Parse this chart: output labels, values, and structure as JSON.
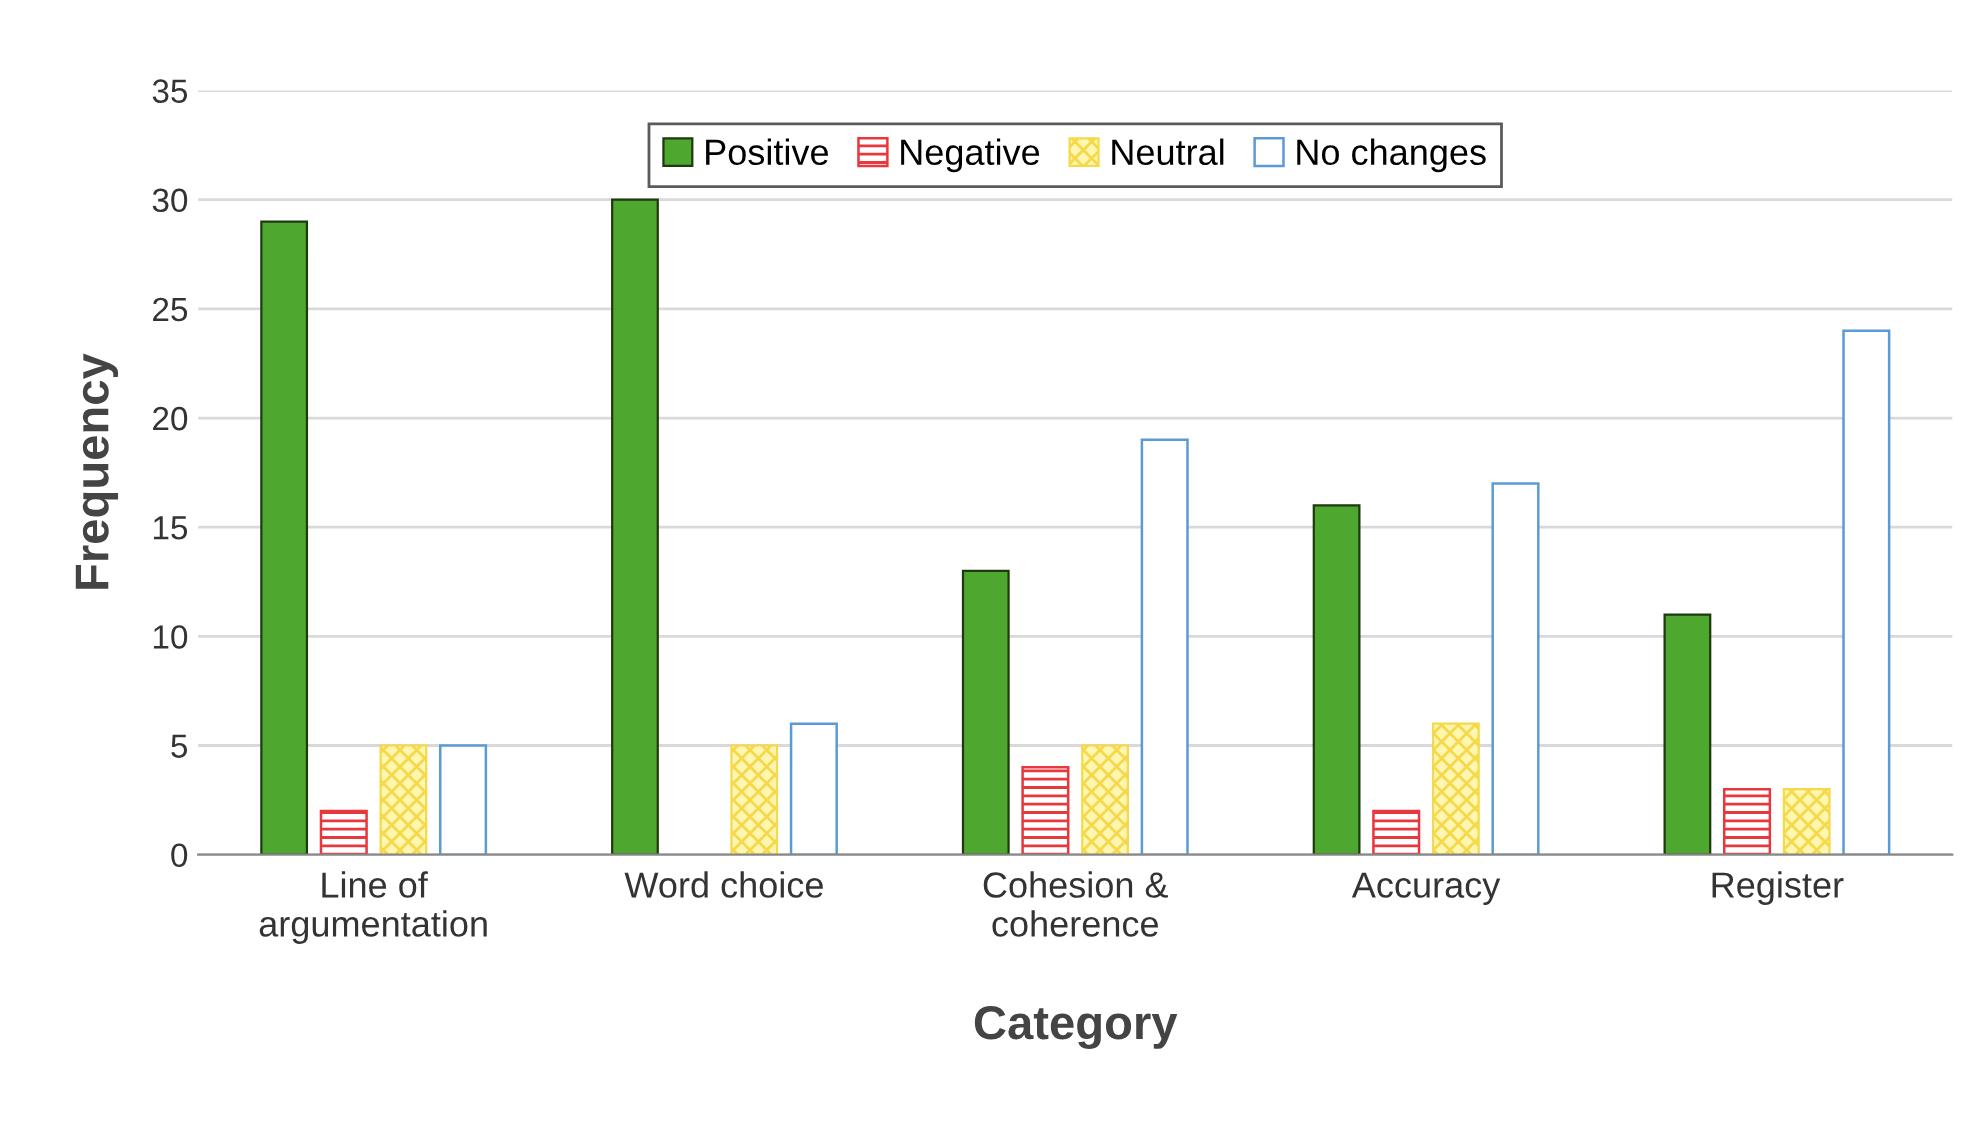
{
  "chart_data": {
    "type": "bar",
    "xlabel": "Category",
    "ylabel": "Frequency",
    "categories": [
      "Line of\nargumentation",
      "Word choice",
      "Cohesion &\ncoherence",
      "Accuracy",
      "Register"
    ],
    "series": [
      {
        "name": "Positive",
        "color": "#4ea72e",
        "values": [
          29,
          30,
          13,
          16,
          11
        ]
      },
      {
        "name": "Negative",
        "color": "#e8383d",
        "values": [
          2,
          null,
          4,
          2,
          3
        ]
      },
      {
        "name": "Neutral",
        "color": "#f5d94a",
        "values": [
          5,
          5,
          5,
          6,
          3
        ]
      },
      {
        "name": "No changes",
        "color": "#5b9bd5",
        "values": [
          5,
          6,
          19,
          17,
          24
        ]
      }
    ],
    "ylim": [
      0,
      35
    ],
    "yticks": [
      0,
      5,
      10,
      15,
      20,
      25,
      30,
      35
    ],
    "grid": "y",
    "legend": "top"
  }
}
